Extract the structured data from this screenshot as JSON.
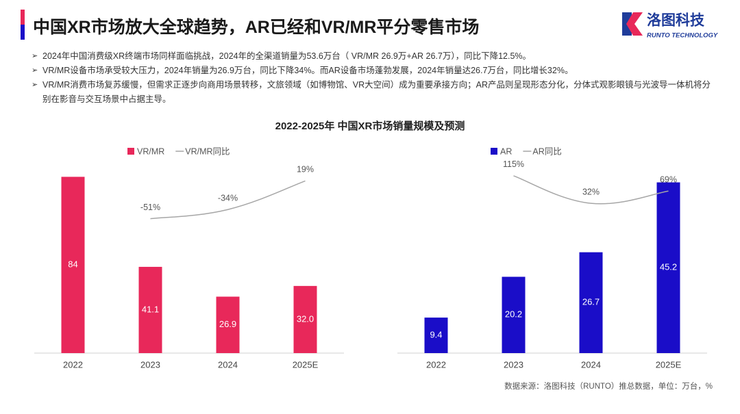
{
  "header": {
    "title": "中国XR市场放大全球趋势，AR已经和VR/MR平分零售市场",
    "logo_cn": "洛图科技",
    "logo_en": "RUNTO TECHNOLOGY"
  },
  "bullets": [
    "2024年中国消费级XR终端市场同样面临挑战，2024年的全渠道销量为53.6万台（ VR/MR 26.9万+AR 26.7万），同比下降12.5%。",
    "VR/MR设备市场承受较大压力，2024年销量为26.9万台，同比下降34%。而AR设备市场蓬勃发展，2024年销量达26.7万台，同比增长32%。",
    "VR/MR消费市场复苏缓慢，但需求正逐步向商用场景转移，文旅领域（如博物馆、VR大空间）成为重要承接方向；AR产品则呈现形态分化，分体式观影眼镜与光波导一体机将分别在影音与交互场景中占据主导。"
  ],
  "section_title": "2022-2025年 中国XR市场销量规模及预测",
  "chart_data": [
    {
      "type": "bar",
      "categories": [
        "2022",
        "2023",
        "2024",
        "2025E"
      ],
      "series": [
        {
          "name": "VR/MR",
          "color": "#e8285a",
          "values": [
            84,
            41.1,
            26.9,
            32
          ],
          "value_labels": [
            "84",
            "41.1",
            "26.9",
            "32.0"
          ]
        },
        {
          "name": "VR/MR同比",
          "type": "line",
          "axis": "y2",
          "color": "#a6a6a6",
          "values": [
            null,
            -51,
            -34,
            19
          ],
          "value_labels": [
            null,
            "-51%",
            "-34%",
            "19%"
          ]
        }
      ],
      "ylim": [
        0,
        90
      ],
      "y2lim": [
        -300,
        50
      ]
    },
    {
      "type": "bar",
      "categories": [
        "2022",
        "2023",
        "2024",
        "2025E"
      ],
      "series": [
        {
          "name": "AR",
          "color": "#1a0dc8",
          "values": [
            9.4,
            20.2,
            26.7,
            45.2
          ]
        },
        {
          "name": "AR同比",
          "type": "line",
          "axis": "y2",
          "color": "#a6a6a6",
          "values": [
            null,
            115,
            32,
            69
          ],
          "value_labels": [
            null,
            "115%",
            "32%",
            "69%"
          ]
        }
      ],
      "ylim": [
        0,
        50
      ],
      "y2lim": [
        -420,
        150
      ]
    }
  ],
  "source": "数据来源：洛图科技（RUNTO）推总数据，单位：万台，%"
}
